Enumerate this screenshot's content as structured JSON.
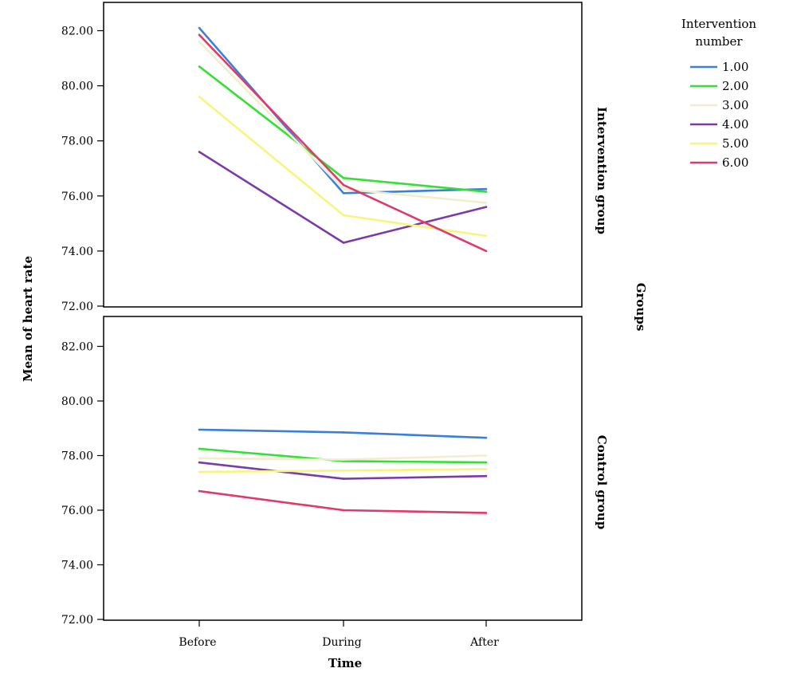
{
  "chart_data": {
    "type": "line",
    "xlabel": "Time",
    "ylabel": "Mean of heart rate",
    "categories": [
      "Before",
      "During",
      "After"
    ],
    "ylim": [
      72,
      83
    ],
    "yticks": [
      "72.00",
      "74.00",
      "76.00",
      "78.00",
      "80.00",
      "82.00"
    ],
    "panel_axis_label": "Groups",
    "legend": {
      "title": "Intervention number",
      "title_lines": [
        "Intervention",
        "number"
      ],
      "placement": "top-right",
      "entries": [
        "1.00",
        "2.00",
        "3.00",
        "4.00",
        "5.00",
        "6.00"
      ]
    },
    "colors": [
      "#3a7fd8",
      "#33e033",
      "#f0eecc",
      "#7a3aa8",
      "#f5f580",
      "#e03a6a"
    ],
    "panels": [
      {
        "label": "Intervention group",
        "series": [
          {
            "name": "1.00",
            "values": [
              82.1,
              76.1,
              76.25
            ]
          },
          {
            "name": "2.00",
            "values": [
              80.7,
              76.65,
              76.15
            ]
          },
          {
            "name": "3.00",
            "values": [
              81.6,
              76.25,
              75.75
            ]
          },
          {
            "name": "4.00",
            "values": [
              77.6,
              74.3,
              75.6
            ]
          },
          {
            "name": "5.00",
            "values": [
              79.6,
              75.3,
              74.55
            ]
          },
          {
            "name": "6.00",
            "values": [
              81.85,
              76.4,
              74.0
            ]
          }
        ]
      },
      {
        "label": "Control group",
        "series": [
          {
            "name": "1.00",
            "values": [
              78.95,
              78.85,
              78.65
            ]
          },
          {
            "name": "2.00",
            "values": [
              78.25,
              77.8,
              77.75
            ]
          },
          {
            "name": "3.00",
            "values": [
              77.9,
              77.85,
              78.0
            ]
          },
          {
            "name": "4.00",
            "values": [
              77.75,
              77.15,
              77.25
            ]
          },
          {
            "name": "5.00",
            "values": [
              77.4,
              77.45,
              77.5
            ]
          },
          {
            "name": "6.00",
            "values": [
              76.7,
              76.0,
              75.9
            ]
          }
        ]
      }
    ]
  }
}
